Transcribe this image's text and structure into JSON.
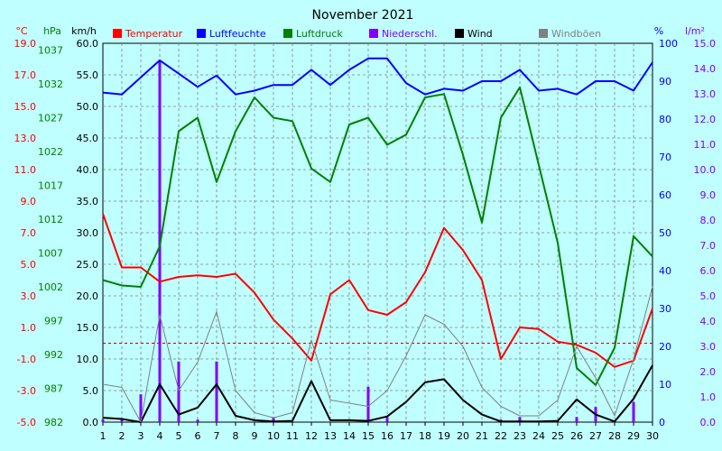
{
  "chart_data": {
    "type": "line",
    "title": "November 2021",
    "axes": {
      "temp": {
        "unit": "°C",
        "min": -5,
        "max": 19,
        "ticks": [
          "19.0",
          "17.0",
          "15.0",
          "13.0",
          "11.0",
          "9.0",
          "7.0",
          "5.0",
          "3.0",
          "1.0",
          "-1.0",
          "-3.0",
          "-5.0"
        ],
        "tick_values": [
          19,
          17,
          15,
          13,
          11,
          9,
          7,
          5,
          3,
          1,
          -1,
          -3,
          -5
        ],
        "color": "#FF0000"
      },
      "press": {
        "unit": "hPa",
        "min": 982,
        "max": 1038,
        "ticks": [
          "1037",
          "1032",
          "1027",
          "1022",
          "1017",
          "1012",
          "1007",
          "1002",
          "997",
          "992",
          "987",
          "982"
        ],
        "tick_values": [
          1037,
          1032,
          1027,
          1022,
          1017,
          1012,
          1007,
          1002,
          997,
          992,
          987,
          982
        ],
        "color": "#008000"
      },
      "wind": {
        "unit": "km/h",
        "min": 0,
        "max": 60,
        "ticks": [
          "60.0",
          "55.0",
          "50.0",
          "45.0",
          "40.0",
          "35.0",
          "30.0",
          "25.0",
          "20.0",
          "15.0",
          "10.0",
          "5.0",
          "0.0"
        ],
        "tick_values": [
          60,
          55,
          50,
          45,
          40,
          35,
          30,
          25,
          20,
          15,
          10,
          5,
          0
        ],
        "color": "#000000"
      },
      "hum": {
        "unit": "%",
        "min": 0,
        "max": 100,
        "ticks": [
          "100",
          "90",
          "80",
          "70",
          "60",
          "50",
          "40",
          "30",
          "20",
          "10",
          "0"
        ],
        "tick_values": [
          100,
          90,
          80,
          70,
          60,
          50,
          40,
          30,
          20,
          10,
          0
        ],
        "color": "#0000FF"
      },
      "rain": {
        "unit": "l/m²",
        "min": 0,
        "max": 15,
        "ticks": [
          "15.0",
          "14.0",
          "13.0",
          "12.0",
          "11.0",
          "10.0",
          "9.0",
          "8.0",
          "7.0",
          "6.0",
          "5.0",
          "4.0",
          "3.0",
          "2.0",
          "1.0",
          "0.0"
        ],
        "tick_values": [
          15,
          14,
          13,
          12,
          11,
          10,
          9,
          8,
          7,
          6,
          5,
          4,
          3,
          2,
          1,
          0
        ],
        "color": "#8000FF"
      }
    },
    "x": [
      "1",
      "2",
      "3",
      "4",
      "5",
      "6",
      "7",
      "8",
      "9",
      "10",
      "11",
      "12",
      "13",
      "14",
      "15",
      "16",
      "17",
      "18",
      "19",
      "20",
      "21",
      "22",
      "23",
      "24",
      "25",
      "26",
      "27",
      "28",
      "29",
      "30"
    ],
    "legend": [
      {
        "name": "Temperatur",
        "color": "#FF0000"
      },
      {
        "name": "Luftfeuchte",
        "color": "#0000FF"
      },
      {
        "name": "Luftdruck",
        "color": "#008000"
      },
      {
        "name": "Niederschl.",
        "color": "#8000FF"
      },
      {
        "name": "Wind",
        "color": "#000000"
      },
      {
        "name": "Windböen",
        "color": "#808080"
      }
    ],
    "series": [
      {
        "name": "Temperatur",
        "axis": "temp",
        "color": "#FF0000",
        "values": [
          8.2,
          4.8,
          4.8,
          3.9,
          4.2,
          4.3,
          4.2,
          4.4,
          3.2,
          1.5,
          0.3,
          -1.1,
          3.1,
          4.0,
          2.1,
          1.8,
          2.6,
          4.5,
          7.3,
          5.9,
          4.0,
          -1.0,
          1.0,
          0.9,
          0.1,
          -0.1,
          -0.6,
          -1.5,
          -1.1,
          2.2
        ]
      },
      {
        "name": "Luftfeuchte",
        "axis": "hum",
        "color": "#0000FF",
        "values": [
          87,
          86.5,
          91,
          95.5,
          92,
          88.5,
          91.5,
          86.5,
          87.5,
          89,
          89,
          93,
          89,
          93,
          96,
          96,
          89.5,
          86.5,
          88,
          87.5,
          90,
          90,
          93,
          87.5,
          88,
          86.5,
          90,
          90,
          87.5,
          95
        ]
      },
      {
        "name": "Luftdruck",
        "axis": "press",
        "color": "#008000",
        "values": [
          1003,
          1002.2,
          1002,
          1008,
          1025,
          1027,
          1017.5,
          1025,
          1030,
          1027,
          1026.5,
          1019.5,
          1017.5,
          1026,
          1027,
          1023,
          1024.5,
          1030,
          1030.5,
          1021.5,
          1011.5,
          1027,
          1031.5,
          1020,
          1008.5,
          990,
          987.5,
          993,
          1009.5,
          1006.5
        ]
      },
      {
        "name": "Wind",
        "axis": "wind",
        "color": "#000000",
        "width": 2,
        "values": [
          0.7,
          0.5,
          0.0,
          6.0,
          1.2,
          2.3,
          6.0,
          1.0,
          0.3,
          0.1,
          0.2,
          6.5,
          0.3,
          0.3,
          0.2,
          0.9,
          3.2,
          6.3,
          6.8,
          3.5,
          1.2,
          0.1,
          0.1,
          0.1,
          0.2,
          3.6,
          1.2,
          0.1,
          3.7,
          9.0
        ]
      },
      {
        "name": "Windböen",
        "axis": "wind",
        "color": "#808080",
        "width": 1,
        "values": [
          6.0,
          5.5,
          0.0,
          17.0,
          5.0,
          9.5,
          17.5,
          5.0,
          1.5,
          0.7,
          1.5,
          13.0,
          3.5,
          3.0,
          2.5,
          5.0,
          10.5,
          17.0,
          15.5,
          12.0,
          5.5,
          2.5,
          1.0,
          1.0,
          3.5,
          12.0,
          7.0,
          1.0,
          10.0,
          21.5
        ]
      }
    ],
    "bars": {
      "name": "Niederschl.",
      "axis": "rain",
      "color": "#8000FF",
      "values": [
        0.1,
        0.1,
        1.1,
        14.3,
        2.4,
        0.1,
        2.4,
        0,
        0,
        0.2,
        0,
        0,
        0,
        0,
        1.4,
        0.2,
        0,
        0,
        0,
        0,
        0,
        0.1,
        0.2,
        0,
        0,
        0.2,
        0.6,
        0,
        0.8,
        0
      ]
    },
    "reference_lines": [
      {
        "axis": "temp",
        "value": 0,
        "color": "#C00000",
        "dashed": true
      }
    ],
    "grid": true
  }
}
